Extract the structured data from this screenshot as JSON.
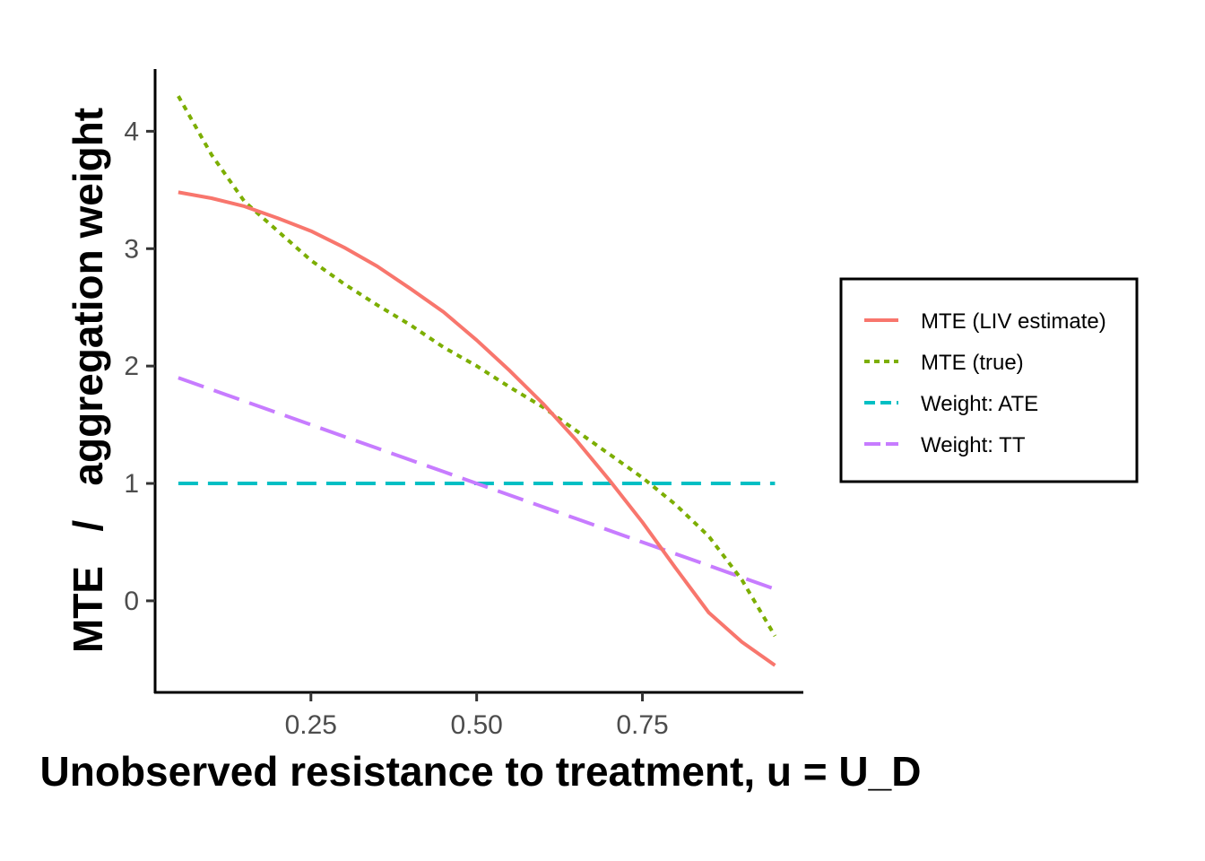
{
  "chart_data": {
    "type": "line",
    "title": "",
    "xlabel": "Unobserved resistance to treatment, u = U_D",
    "ylabel": "MTE   /   aggregation weight",
    "xlim": [
      0.015,
      0.99
    ],
    "ylim": [
      -0.78,
      4.53
    ],
    "x_ticks": [
      {
        "value": 0.25,
        "label": "0.25"
      },
      {
        "value": 0.5,
        "label": "0.50"
      },
      {
        "value": 0.75,
        "label": "0.75"
      }
    ],
    "y_ticks": [
      {
        "value": 0,
        "label": "0"
      },
      {
        "value": 1,
        "label": "1"
      },
      {
        "value": 2,
        "label": "2"
      },
      {
        "value": 3,
        "label": "3"
      },
      {
        "value": 4,
        "label": "4"
      }
    ],
    "grid": false,
    "legend_position": "right",
    "series": [
      {
        "name": "MTE (LIV estimate)",
        "color": "#F8766D",
        "dash": "solid",
        "x": [
          0.05,
          0.1,
          0.15,
          0.2,
          0.25,
          0.3,
          0.35,
          0.4,
          0.45,
          0.5,
          0.55,
          0.6,
          0.65,
          0.7,
          0.75,
          0.8,
          0.85,
          0.9,
          0.95
        ],
        "y": [
          3.48,
          3.43,
          3.36,
          3.26,
          3.15,
          3.01,
          2.85,
          2.66,
          2.46,
          2.22,
          1.96,
          1.68,
          1.37,
          1.03,
          0.67,
          0.28,
          -0.1,
          -0.35,
          -0.55
        ]
      },
      {
        "name": "MTE (true)",
        "color": "#7CAE00",
        "dash": "dotted",
        "x": [
          0.05,
          0.1,
          0.15,
          0.2,
          0.25,
          0.3,
          0.35,
          0.4,
          0.45,
          0.5,
          0.55,
          0.6,
          0.65,
          0.7,
          0.75,
          0.8,
          0.85,
          0.9,
          0.95
        ],
        "y": [
          4.3,
          3.8,
          3.4,
          3.15,
          2.9,
          2.7,
          2.52,
          2.35,
          2.16,
          2.0,
          1.82,
          1.65,
          1.45,
          1.25,
          1.05,
          0.82,
          0.55,
          0.18,
          -0.3
        ]
      },
      {
        "name": "Weight: ATE",
        "color": "#00BFC4",
        "dash": "dashed",
        "x": [
          0.05,
          0.95
        ],
        "y": [
          1.0,
          1.0
        ]
      },
      {
        "name": "Weight: TT",
        "color": "#C77CFF",
        "dash": "longdash",
        "x": [
          0.05,
          0.15,
          0.25,
          0.35,
          0.45,
          0.55,
          0.65,
          0.75,
          0.85,
          0.95
        ],
        "y": [
          1.9,
          1.7,
          1.5,
          1.3,
          1.1,
          0.9,
          0.7,
          0.5,
          0.3,
          0.1
        ]
      }
    ]
  }
}
